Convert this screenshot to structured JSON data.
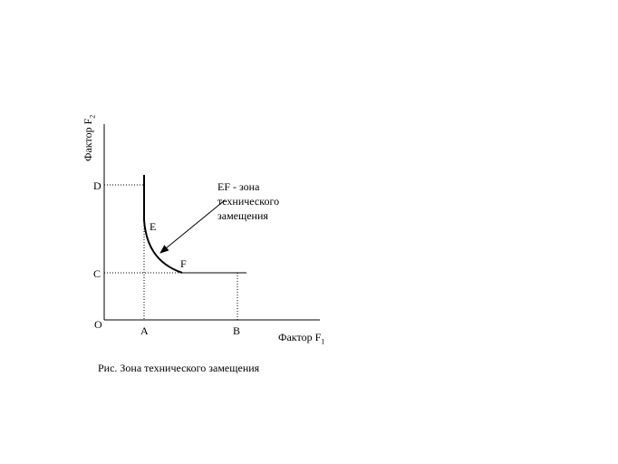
{
  "diagram": {
    "y_axis_label": "Фактор F",
    "y_axis_sub": "2",
    "x_axis_label": "Фактор F",
    "x_axis_sub": "1",
    "points": {
      "D": "D",
      "C": "C",
      "O": "O",
      "A": "A",
      "B": "B",
      "E": "E",
      "F": "F"
    },
    "annotation": [
      "EF - зона",
      "технического",
      "замещения"
    ],
    "caption": "Рис. Зона технического замещения"
  }
}
